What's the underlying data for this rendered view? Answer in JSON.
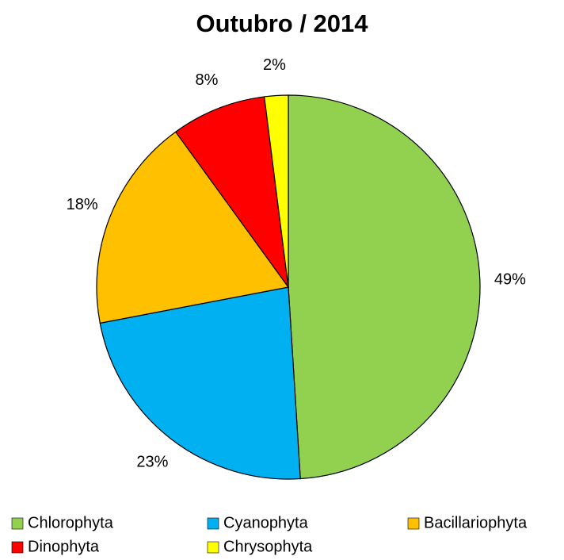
{
  "chart_data": {
    "type": "pie",
    "title": "Outubro / 2014",
    "categories": [
      "Chlorophyta",
      "Cyanophyta",
      "Bacillariophyta",
      "Dinophyta",
      "Chrysophyta"
    ],
    "values": [
      49,
      23,
      18,
      8,
      2
    ],
    "value_labels": [
      "49%",
      "23%",
      "18%",
      "8%",
      "2%"
    ],
    "colors": [
      "#92d050",
      "#00b0f0",
      "#ffc000",
      "#ff0000",
      "#ffff00"
    ]
  }
}
